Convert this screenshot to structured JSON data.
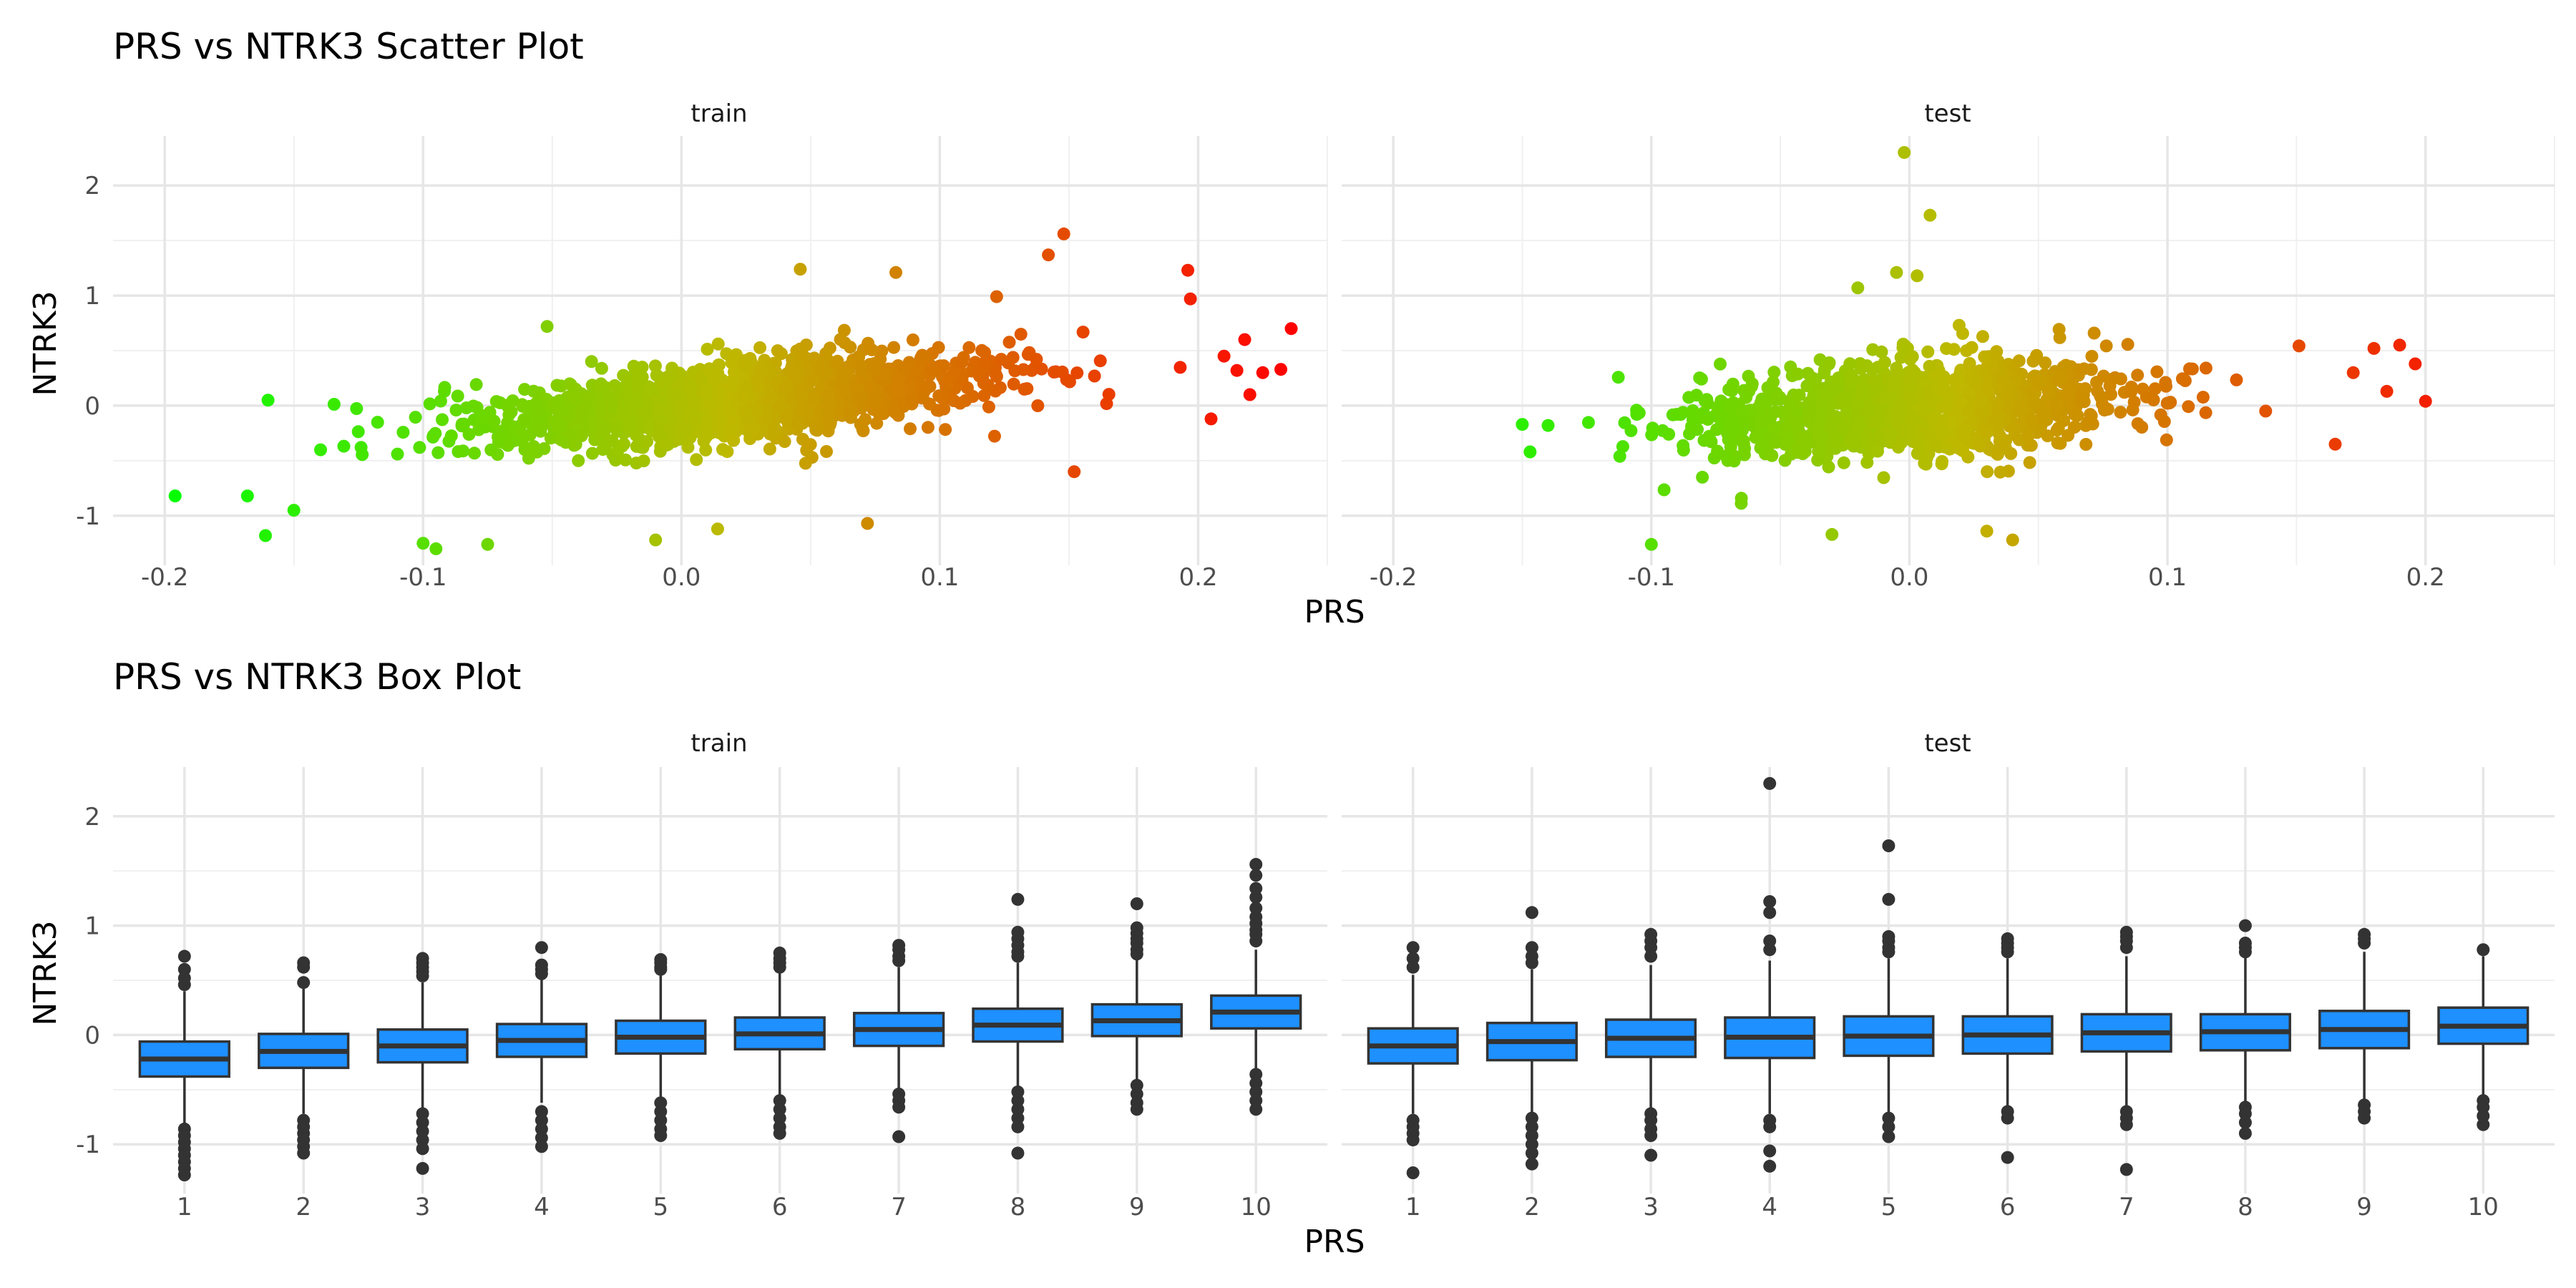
{
  "chart_data": [
    {
      "type": "scatter",
      "title": "PRS vs NTRK3 Scatter Plot",
      "xlabel": "PRS",
      "ylabel": "NTRK3",
      "xlim": [
        -0.22,
        0.25
      ],
      "ylim": [
        -1.45,
        2.45
      ],
      "x_ticks": [
        -0.2,
        -0.1,
        0.0,
        0.1,
        0.2
      ],
      "x_tick_labels": [
        "-0.2",
        "-0.1",
        "0.0",
        "0.1",
        "0.2"
      ],
      "y_ticks": [
        -1,
        0,
        1,
        2
      ],
      "y_tick_labels": [
        "-1",
        "0",
        "1",
        "2"
      ],
      "grid": true,
      "color_gradient": [
        "#00ff00",
        "#ff0000"
      ],
      "point_color_scale": "x",
      "facets": [
        {
          "name": "train",
          "cloud": {
            "n": 1500,
            "x_mean": 0.02,
            "x_sd": 0.05,
            "slope": 2.2,
            "intercept": 0.0,
            "resid_sd": 0.18
          },
          "points": [
            {
              "x": -0.196,
              "y": -0.82
            },
            {
              "x": -0.168,
              "y": -0.82
            },
            {
              "x": -0.16,
              "y": 0.05
            },
            {
              "x": -0.161,
              "y": -1.18
            },
            {
              "x": -0.15,
              "y": -0.95
            },
            {
              "x": -0.1,
              "y": -1.25
            },
            {
              "x": -0.095,
              "y": -1.3
            },
            {
              "x": -0.075,
              "y": -1.26
            },
            {
              "x": -0.052,
              "y": 0.72
            },
            {
              "x": -0.01,
              "y": -1.22
            },
            {
              "x": 0.014,
              "y": -1.12
            },
            {
              "x": 0.046,
              "y": 1.24
            },
            {
              "x": 0.072,
              "y": -1.07
            },
            {
              "x": 0.083,
              "y": 1.21
            },
            {
              "x": 0.122,
              "y": 0.99
            },
            {
              "x": 0.142,
              "y": 1.37
            },
            {
              "x": 0.148,
              "y": 1.56
            },
            {
              "x": 0.152,
              "y": -0.6
            },
            {
              "x": 0.196,
              "y": 1.23
            },
            {
              "x": 0.197,
              "y": 0.97
            },
            {
              "x": 0.215,
              "y": 0.32
            },
            {
              "x": 0.22,
              "y": 0.1
            },
            {
              "x": 0.225,
              "y": 0.3
            },
            {
              "x": 0.232,
              "y": 0.33
            },
            {
              "x": 0.236,
              "y": 0.7
            },
            {
              "x": 0.218,
              "y": 0.6
            },
            {
              "x": 0.21,
              "y": 0.45
            },
            {
              "x": 0.205,
              "y": -0.12
            }
          ]
        },
        {
          "name": "test",
          "cloud": {
            "n": 1100,
            "x_mean": 0.0,
            "x_sd": 0.045,
            "slope": 1.5,
            "intercept": -0.03,
            "resid_sd": 0.22
          },
          "points": [
            {
              "x": -0.15,
              "y": -0.17
            },
            {
              "x": -0.147,
              "y": -0.42
            },
            {
              "x": -0.14,
              "y": -0.18
            },
            {
              "x": -0.1,
              "y": -1.26
            },
            {
              "x": -0.03,
              "y": -1.17
            },
            {
              "x": -0.02,
              "y": 1.07
            },
            {
              "x": -0.005,
              "y": 1.21
            },
            {
              "x": -0.002,
              "y": 2.3
            },
            {
              "x": 0.003,
              "y": 1.18
            },
            {
              "x": 0.008,
              "y": 1.73
            },
            {
              "x": 0.03,
              "y": -1.14
            },
            {
              "x": 0.04,
              "y": -1.22
            },
            {
              "x": 0.19,
              "y": 0.55
            },
            {
              "x": 0.196,
              "y": 0.38
            },
            {
              "x": 0.2,
              "y": 0.04
            },
            {
              "x": 0.185,
              "y": 0.13
            },
            {
              "x": 0.18,
              "y": 0.52
            },
            {
              "x": 0.172,
              "y": 0.3
            },
            {
              "x": 0.165,
              "y": -0.35
            }
          ]
        }
      ]
    },
    {
      "type": "box",
      "title": "PRS vs NTRK3 Box Plot",
      "xlabel": "PRS",
      "ylabel": "NTRK3",
      "categories": [
        "1",
        "2",
        "3",
        "4",
        "5",
        "6",
        "7",
        "8",
        "9",
        "10"
      ],
      "ylim": [
        -1.45,
        2.45
      ],
      "y_ticks": [
        -1,
        0,
        1,
        2
      ],
      "y_tick_labels": [
        "-1",
        "0",
        "1",
        "2"
      ],
      "grid": true,
      "box_fill": "#1e90ff",
      "facets": [
        {
          "name": "train",
          "boxes": [
            {
              "category": "1",
              "q1": -0.38,
              "median": -0.22,
              "q3": -0.06,
              "whisker_low": -0.82,
              "whisker_high": 0.4,
              "outliers": [
                0.72,
                0.6,
                0.52,
                0.46,
                -0.86,
                -0.92,
                -0.98,
                -1.04,
                -1.1,
                -1.16,
                -1.22,
                -1.28
              ]
            },
            {
              "category": "2",
              "q1": -0.3,
              "median": -0.15,
              "q3": 0.01,
              "whisker_low": -0.72,
              "whisker_high": 0.45,
              "outliers": [
                0.66,
                0.62,
                0.48,
                -0.78,
                -0.84,
                -0.9,
                -0.96,
                -1.02,
                -1.08
              ]
            },
            {
              "category": "3",
              "q1": -0.25,
              "median": -0.1,
              "q3": 0.05,
              "whisker_low": -0.68,
              "whisker_high": 0.48,
              "outliers": [
                0.7,
                0.66,
                0.62,
                0.58,
                0.54,
                -0.72,
                -0.8,
                -0.88,
                -0.96,
                -1.04,
                -1.22
              ]
            },
            {
              "category": "4",
              "q1": -0.2,
              "median": -0.05,
              "q3": 0.1,
              "whisker_low": -0.62,
              "whisker_high": 0.52,
              "outliers": [
                0.8,
                0.64,
                0.6,
                0.56,
                -0.7,
                -0.78,
                -0.86,
                -0.94,
                -1.02
              ]
            },
            {
              "category": "5",
              "q1": -0.17,
              "median": -0.02,
              "q3": 0.13,
              "whisker_low": -0.58,
              "whisker_high": 0.55,
              "outliers": [
                0.69,
                0.66,
                0.62,
                0.6,
                -0.62,
                -0.7,
                -0.78,
                -0.86,
                -0.92
              ]
            },
            {
              "category": "6",
              "q1": -0.13,
              "median": 0.01,
              "q3": 0.16,
              "whisker_low": -0.56,
              "whisker_high": 0.58,
              "outliers": [
                0.75,
                0.7,
                0.66,
                0.62,
                -0.6,
                -0.68,
                -0.76,
                -0.84,
                -0.9
              ]
            },
            {
              "category": "7",
              "q1": -0.1,
              "median": 0.05,
              "q3": 0.2,
              "whisker_low": -0.5,
              "whisker_high": 0.62,
              "outliers": [
                0.82,
                0.78,
                0.72,
                0.68,
                -0.54,
                -0.6,
                -0.66,
                -0.93
              ]
            },
            {
              "category": "8",
              "q1": -0.06,
              "median": 0.09,
              "q3": 0.24,
              "whisker_low": -0.48,
              "whisker_high": 0.66,
              "outliers": [
                1.24,
                0.94,
                0.88,
                0.82,
                0.76,
                0.72,
                -0.52,
                -0.6,
                -0.68,
                -0.76,
                -0.84,
                -1.08
              ]
            },
            {
              "category": "9",
              "q1": -0.01,
              "median": 0.13,
              "q3": 0.28,
              "whisker_low": -0.42,
              "whisker_high": 0.7,
              "outliers": [
                1.2,
                0.98,
                0.93,
                0.88,
                0.84,
                0.78,
                0.74,
                -0.46,
                -0.54,
                -0.62,
                -0.68
              ]
            },
            {
              "category": "10",
              "q1": 0.06,
              "median": 0.21,
              "q3": 0.36,
              "whisker_low": -0.33,
              "whisker_high": 0.78,
              "outliers": [
                1.56,
                1.46,
                1.34,
                1.26,
                1.16,
                1.08,
                1.02,
                0.96,
                0.92,
                0.86,
                -0.36,
                -0.44,
                -0.52,
                -0.6,
                -0.68
              ]
            }
          ]
        },
        {
          "name": "test",
          "boxes": [
            {
              "category": "1",
              "q1": -0.26,
              "median": -0.1,
              "q3": 0.06,
              "whisker_low": -0.72,
              "whisker_high": 0.55,
              "outliers": [
                0.8,
                0.7,
                0.62,
                -0.78,
                -0.84,
                -0.9,
                -0.96,
                -1.26
              ]
            },
            {
              "category": "2",
              "q1": -0.23,
              "median": -0.06,
              "q3": 0.11,
              "whisker_low": -0.72,
              "whisker_high": 0.6,
              "outliers": [
                1.12,
                0.8,
                0.72,
                0.66,
                -0.76,
                -0.84,
                -0.92,
                -1.0,
                -1.08,
                -1.18
              ]
            },
            {
              "category": "3",
              "q1": -0.2,
              "median": -0.03,
              "q3": 0.14,
              "whisker_low": -0.68,
              "whisker_high": 0.64,
              "outliers": [
                0.92,
                0.86,
                0.8,
                0.72,
                -0.72,
                -0.78,
                -0.86,
                -0.92,
                -1.1
              ]
            },
            {
              "category": "4",
              "q1": -0.21,
              "median": -0.02,
              "q3": 0.16,
              "whisker_low": -0.72,
              "whisker_high": 0.68,
              "outliers": [
                2.3,
                1.22,
                1.12,
                0.86,
                0.78,
                -0.78,
                -0.84,
                -1.06,
                -1.2
              ]
            },
            {
              "category": "5",
              "q1": -0.19,
              "median": -0.01,
              "q3": 0.17,
              "whisker_low": -0.72,
              "whisker_high": 0.7,
              "outliers": [
                1.73,
                1.24,
                0.9,
                0.86,
                0.8,
                0.76,
                -0.76,
                -0.84,
                -0.93
              ]
            },
            {
              "category": "6",
              "q1": -0.17,
              "median": 0.0,
              "q3": 0.17,
              "whisker_low": -0.66,
              "whisker_high": 0.7,
              "outliers": [
                0.88,
                0.84,
                0.8,
                0.76,
                -0.7,
                -0.76,
                -1.12
              ]
            },
            {
              "category": "7",
              "q1": -0.15,
              "median": 0.02,
              "q3": 0.19,
              "whisker_low": -0.66,
              "whisker_high": 0.72,
              "outliers": [
                0.94,
                0.9,
                0.86,
                0.8,
                -0.7,
                -0.76,
                -0.82,
                -1.23
              ]
            },
            {
              "category": "8",
              "q1": -0.14,
              "median": 0.03,
              "q3": 0.19,
              "whisker_low": -0.62,
              "whisker_high": 0.72,
              "outliers": [
                1.0,
                0.84,
                0.8,
                0.76,
                -0.66,
                -0.72,
                -0.8,
                -0.9
              ]
            },
            {
              "category": "9",
              "q1": -0.12,
              "median": 0.05,
              "q3": 0.22,
              "whisker_low": -0.6,
              "whisker_high": 0.76,
              "outliers": [
                0.92,
                0.88,
                0.84,
                -0.64,
                -0.7,
                -0.76
              ]
            },
            {
              "category": "10",
              "q1": -0.08,
              "median": 0.08,
              "q3": 0.25,
              "whisker_low": -0.55,
              "whisker_high": 0.72,
              "outliers": [
                0.78,
                -0.6,
                -0.66,
                -0.74,
                -0.82
              ]
            }
          ]
        }
      ]
    }
  ]
}
